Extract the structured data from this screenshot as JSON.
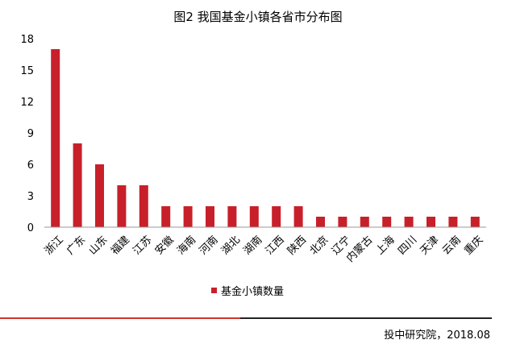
{
  "chart_data": {
    "type": "bar",
    "title": "图2  我国基金小镇各省市分布图",
    "categories": [
      "浙江",
      "广东",
      "山东",
      "福建",
      "江苏",
      "安徽",
      "海南",
      "河南",
      "湖北",
      "湖南",
      "江西",
      "陕西",
      "北京",
      "辽宁",
      "内蒙古",
      "上海",
      "四川",
      "天津",
      "云南",
      "重庆"
    ],
    "series": [
      {
        "name": "基金小镇数量",
        "values": [
          17,
          8,
          6,
          4,
          4,
          2,
          2,
          2,
          2,
          2,
          2,
          2,
          1,
          1,
          1,
          1,
          1,
          1,
          1,
          1
        ]
      }
    ],
    "yticks": [
      "0",
      "3",
      "6",
      "9",
      "12",
      "15",
      "18"
    ],
    "ylim": [
      0,
      18
    ],
    "xlabel": "",
    "ylabel": "",
    "grid": false,
    "legend_position": "bottom",
    "bar_color": "#c8202a"
  },
  "footer": {
    "source": "投中研究院，2018.08"
  },
  "colors": {
    "rule_left": "#d0342c",
    "rule_right": "#222222"
  }
}
